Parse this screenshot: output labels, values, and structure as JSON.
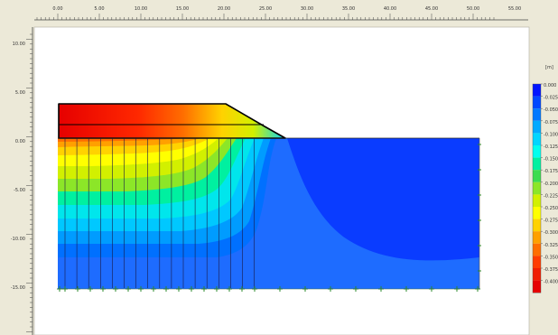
{
  "x_axis": {
    "ticks": [
      "0.00",
      "5.00",
      "10.00",
      "15.00",
      "20.00",
      "25.00",
      "30.00",
      "35.00",
      "40.00",
      "45.00",
      "50.00",
      "55.00"
    ]
  },
  "y_axis": {
    "ticks": [
      "10.00",
      "5.00",
      "0.00",
      "-5.00",
      "-10.00",
      "-15.00"
    ]
  },
  "legend": {
    "unit": "[m]",
    "values": [
      "0.000",
      "-0.025",
      "-0.050",
      "-0.075",
      "-0.100",
      "-0.125",
      "-0.150",
      "-0.175",
      "-0.200",
      "-0.225",
      "-0.250",
      "-0.275",
      "-0.300",
      "-0.325",
      "-0.350",
      "-0.375",
      "-0.400"
    ],
    "colors": [
      "#0014ff",
      "#0048ff",
      "#0078ff",
      "#00aaff",
      "#00d6ff",
      "#00ffee",
      "#00f0a0",
      "#3cdc50",
      "#8ce628",
      "#d2f000",
      "#ffff00",
      "#ffd200",
      "#ffa000",
      "#ff6e00",
      "#ff3c00",
      "#f01e00",
      "#e60000"
    ]
  },
  "colors": {
    "background": "#ece9d8",
    "panel": "#ffffff",
    "outline": "#000000",
    "fixity": "#2a8a2a"
  }
}
